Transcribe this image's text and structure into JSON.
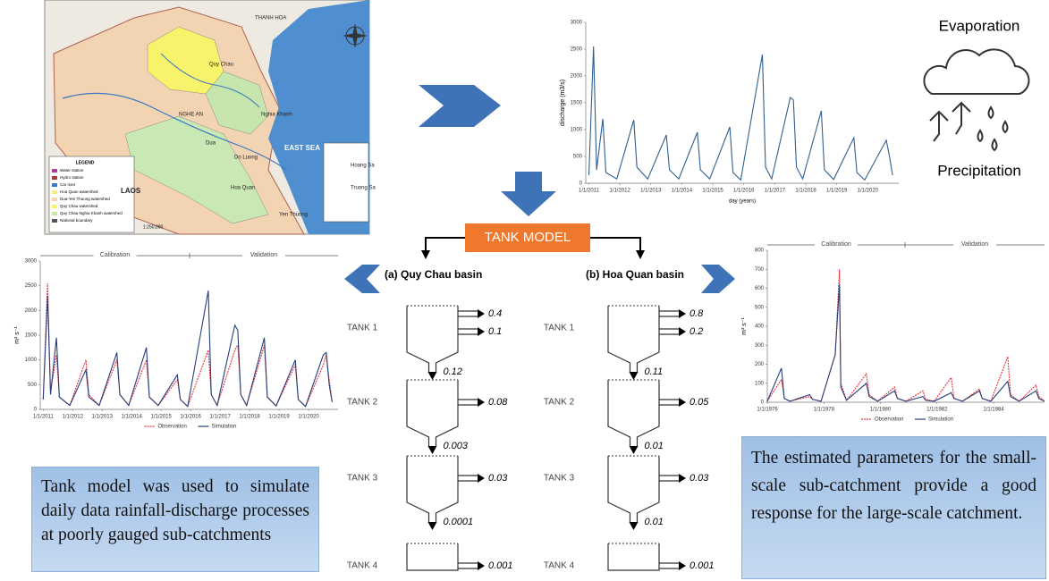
{
  "map": {
    "places": [
      "THANH HOA",
      "Quy Chau",
      "NGHE AN",
      "Nghia Khanh",
      "Dua",
      "Do Luong",
      "Hoa Quan",
      "Yen Thuong",
      "LAOS",
      "EAST SEA",
      "Hoang Sa",
      "Truong Sa"
    ],
    "legend_title": "LEGEND",
    "legend_items": [
      "Water station",
      "Hydro station",
      "Car river",
      "Hoa Quan watershed",
      "Dua-Yen Thuong watershed",
      "Quy Chau watershed",
      "Quy Chau-Nghia Khanh watershed",
      "National boundary"
    ],
    "scale": "1:250,000"
  },
  "evaporation": "Evaporation",
  "precipitation": "Precipitation",
  "discharge_chart": {
    "type": "line",
    "y_label": "discharge (m3/s)",
    "x_label": "day (years)",
    "xlim": [
      2010.9,
      2021.0
    ],
    "xticks": [
      {
        "value": 2011,
        "label": "1/1/2011"
      },
      {
        "value": 2012,
        "label": "1/1/2012"
      },
      {
        "value": 2013,
        "label": "1/1/2013"
      },
      {
        "value": 2014,
        "label": "1/1/2014"
      },
      {
        "value": 2015,
        "label": "1/1/2015"
      },
      {
        "value": 2016,
        "label": "1/1/2016"
      },
      {
        "value": 2017,
        "label": "1/1/2017"
      },
      {
        "value": 2018,
        "label": "1/1/2018"
      },
      {
        "value": 2019,
        "label": "1/1/2019"
      },
      {
        "value": 2020,
        "label": "1/1/2020"
      }
    ],
    "ylim": [
      0,
      3000
    ],
    "yticks": [
      0,
      500,
      1000,
      1500,
      2000,
      2500,
      3000
    ],
    "x": [
      2011.0,
      2011.15,
      2011.25,
      2011.45,
      2011.55,
      2011.9,
      2012.45,
      2012.55,
      2012.9,
      2013.5,
      2013.6,
      2013.9,
      2014.5,
      2014.6,
      2014.9,
      2015.55,
      2015.65,
      2015.9,
      2016.6,
      2016.7,
      2016.9,
      2017.5,
      2017.6,
      2017.7,
      2017.9,
      2018.5,
      2018.6,
      2018.9,
      2019.55,
      2019.65,
      2019.9,
      2020.5,
      2020.6,
      2020.7,
      2020.8
    ],
    "series": [
      {
        "color": "#2f5f8f",
        "values": [
          150,
          2550,
          250,
          1200,
          200,
          80,
          1180,
          300,
          80,
          900,
          250,
          80,
          950,
          250,
          80,
          1050,
          200,
          60,
          2400,
          300,
          80,
          1600,
          1550,
          300,
          80,
          1350,
          250,
          70,
          850,
          200,
          60,
          700,
          800,
          500,
          150
        ]
      }
    ]
  },
  "tank_model": {
    "title": "TANK MODEL",
    "tank_labels": [
      "TANK 1",
      "TANK 2",
      "TANK 3",
      "TANK 4"
    ],
    "basins": [
      {
        "label": "(a)  Quy Chau basin",
        "tanks": [
          {
            "side": [
              0.4,
              0.1
            ],
            "bottom": 0.12
          },
          {
            "side": [
              0.08
            ],
            "bottom": 0.003
          },
          {
            "side": [
              0.03
            ],
            "bottom": 0.0001
          },
          {
            "side": [
              0.001
            ]
          }
        ]
      },
      {
        "label": "(b)  Hoa Quan basin",
        "tanks": [
          {
            "side": [
              0.8,
              0.2
            ],
            "bottom": 0.11
          },
          {
            "side": [
              0.05
            ],
            "bottom": 0.01
          },
          {
            "side": [
              0.03
            ],
            "bottom": 0.01
          },
          {
            "side": [
              0.001
            ]
          }
        ]
      }
    ]
  },
  "quy_chau_chart": {
    "type": "line",
    "period_labels": [
      "Calibration",
      "Validation"
    ],
    "y_label": "m³ s⁻¹",
    "xlim": [
      2010.9,
      2021.0
    ],
    "xticks": [
      {
        "value": 2011,
        "label": "1/1/2011"
      },
      {
        "value": 2012,
        "label": "1/1/2012"
      },
      {
        "value": 2013,
        "label": "1/1/2013"
      },
      {
        "value": 2014,
        "label": "1/1/2014"
      },
      {
        "value": 2015,
        "label": "1/1/2015"
      },
      {
        "value": 2016,
        "label": "1/1/2016"
      },
      {
        "value": 2017,
        "label": "1/1/2017"
      },
      {
        "value": 2018,
        "label": "1/1/2018"
      },
      {
        "value": 2019,
        "label": "1/1/2019"
      },
      {
        "value": 2020,
        "label": "1/1/2020"
      }
    ],
    "ylim": [
      0,
      3000
    ],
    "yticks": [
      0,
      500,
      1000,
      1500,
      2000,
      2500,
      3000
    ],
    "x": [
      2011.0,
      2011.15,
      2011.25,
      2011.45,
      2011.55,
      2011.9,
      2012.45,
      2012.55,
      2012.9,
      2013.5,
      2013.6,
      2013.9,
      2014.5,
      2014.6,
      2014.9,
      2015.55,
      2015.65,
      2015.9,
      2016.6,
      2016.7,
      2016.9,
      2017.5,
      2017.6,
      2017.7,
      2017.9,
      2018.5,
      2018.6,
      2018.9,
      2019.55,
      2019.65,
      2019.9,
      2020.5,
      2020.6,
      2020.7,
      2020.8
    ],
    "series": [
      {
        "name": "Observation",
        "color": "#e8323c",
        "dashed": true,
        "values": [
          200,
          2550,
          350,
          1100,
          250,
          80,
          1000,
          300,
          80,
          1000,
          300,
          80,
          1000,
          250,
          80,
          600,
          200,
          60,
          1200,
          300,
          80,
          1200,
          1300,
          300,
          80,
          1300,
          250,
          70,
          900,
          200,
          60,
          900,
          1100,
          600,
          150
        ]
      },
      {
        "name": "Simulation",
        "color": "#243f7a",
        "dashed": false,
        "values": [
          200,
          2300,
          300,
          1450,
          250,
          80,
          800,
          250,
          80,
          1150,
          300,
          80,
          1250,
          250,
          80,
          700,
          200,
          60,
          2400,
          300,
          80,
          1700,
          1600,
          300,
          80,
          1450,
          250,
          70,
          1000,
          200,
          60,
          1100,
          1150,
          500,
          150
        ]
      }
    ]
  },
  "hoa_quan_chart": {
    "type": "line",
    "period_labels": [
      "Calibration",
      "Validation"
    ],
    "y_label": "m³ s⁻¹",
    "xlim": [
      1976,
      1985.8
    ],
    "xticks": [
      {
        "value": 1976,
        "label": "1/1/1976"
      },
      {
        "value": 1978,
        "label": "1/1/1978"
      },
      {
        "value": 1980,
        "label": "1/1/1980"
      },
      {
        "value": 1982,
        "label": "1/1/1982"
      },
      {
        "value": 1984,
        "label": "1/1/1984"
      }
    ],
    "ylim": [
      0,
      800
    ],
    "yticks": [
      0,
      100,
      200,
      300,
      400,
      500,
      600,
      700,
      800
    ],
    "x": [
      1976.0,
      1976.5,
      1976.6,
      1976.8,
      1977.5,
      1977.6,
      1977.9,
      1978.4,
      1978.55,
      1978.6,
      1978.8,
      1979.5,
      1979.6,
      1979.9,
      1980.5,
      1980.6,
      1980.9,
      1981.5,
      1981.6,
      1981.9,
      1982.5,
      1982.6,
      1982.9,
      1983.5,
      1983.6,
      1983.9,
      1984.5,
      1984.6,
      1984.9,
      1985.5,
      1985.6,
      1985.8
    ],
    "series": [
      {
        "name": "Observation",
        "color": "#e8323c",
        "dashed": true,
        "values": [
          5,
          120,
          20,
          5,
          30,
          15,
          5,
          250,
          700,
          100,
          10,
          150,
          40,
          5,
          80,
          20,
          5,
          60,
          15,
          5,
          130,
          20,
          5,
          70,
          20,
          5,
          240,
          40,
          5,
          90,
          30,
          5
        ]
      },
      {
        "name": "Simulation",
        "color": "#243f7a",
        "dashed": false,
        "values": [
          5,
          180,
          20,
          5,
          40,
          15,
          5,
          250,
          620,
          80,
          10,
          100,
          30,
          5,
          60,
          20,
          5,
          30,
          10,
          5,
          50,
          20,
          5,
          60,
          20,
          5,
          110,
          30,
          5,
          60,
          20,
          5
        ]
      }
    ]
  },
  "left_note": "Tank model was used to simulate daily data rainfall-discharge processes at poorly gauged sub-catchments",
  "right_note": "The estimated parameters for the small-scale sub-catchment provide a good response for the large-scale catchment."
}
